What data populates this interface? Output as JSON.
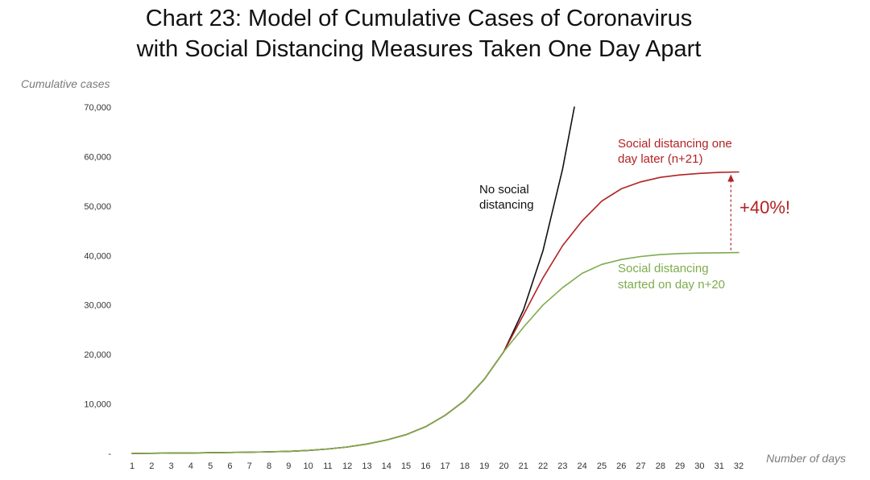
{
  "chart_data": {
    "type": "line",
    "title_line1": "Chart 23: Model of Cumulative Cases of Coronavirus",
    "title_line2": "with Social Distancing Measures Taken One Day Apart",
    "ylabel": "Cumulative cases",
    "xlabel": "Number of days",
    "ylim": [
      0,
      70000
    ],
    "y_ticks": [
      0,
      10000,
      20000,
      30000,
      40000,
      50000,
      60000,
      70000
    ],
    "y_tick_labels": [
      "-",
      "10,000",
      "20,000",
      "30,000",
      "40,000",
      "50,000",
      "60,000",
      "70,000"
    ],
    "x": [
      1,
      2,
      3,
      4,
      5,
      6,
      7,
      8,
      9,
      10,
      11,
      12,
      13,
      14,
      15,
      16,
      17,
      18,
      19,
      20,
      21,
      22,
      23,
      24,
      25,
      26,
      27,
      28,
      29,
      30,
      31,
      32
    ],
    "x_tick_labels": [
      "1",
      "2",
      "3",
      "4",
      "5",
      "6",
      "7",
      "8",
      "9",
      "10",
      "11",
      "12",
      "13",
      "14",
      "15",
      "16",
      "17",
      "18",
      "19",
      "20",
      "21",
      "22",
      "23",
      "24",
      "25",
      "26",
      "27",
      "28",
      "29",
      "30",
      "31",
      "32"
    ],
    "grid": false,
    "series": [
      {
        "name": "No social distancing",
        "color": "#111111",
        "x": [
          1,
          2,
          3,
          4,
          5,
          6,
          7,
          8,
          9,
          10,
          11,
          12,
          13,
          14,
          15,
          16,
          17,
          18,
          19,
          20,
          21,
          22,
          23,
          23.6
        ],
        "values": [
          0,
          30,
          60,
          100,
          150,
          200,
          250,
          320,
          420,
          600,
          900,
          1300,
          1900,
          2700,
          3800,
          5400,
          7700,
          10700,
          15000,
          20600,
          29000,
          41000,
          57500,
          70000
        ]
      },
      {
        "name": "Social distancing one day later (n+21)",
        "color": "#b22222",
        "x": [
          1,
          2,
          3,
          4,
          5,
          6,
          7,
          8,
          9,
          10,
          11,
          12,
          13,
          14,
          15,
          16,
          17,
          18,
          19,
          20,
          21,
          22,
          23,
          24,
          25,
          26,
          27,
          28,
          29,
          30,
          31,
          32
        ],
        "values": [
          0,
          30,
          60,
          100,
          150,
          200,
          250,
          320,
          420,
          600,
          900,
          1300,
          1900,
          2700,
          3800,
          5400,
          7700,
          10700,
          15000,
          20600,
          28000,
          35500,
          42000,
          47000,
          51000,
          53500,
          54900,
          55800,
          56300,
          56600,
          56800,
          56900
        ]
      },
      {
        "name": "Social distancing started on day n+20",
        "color": "#7cac4d",
        "x": [
          1,
          2,
          3,
          4,
          5,
          6,
          7,
          8,
          9,
          10,
          11,
          12,
          13,
          14,
          15,
          16,
          17,
          18,
          19,
          20,
          21,
          22,
          23,
          24,
          25,
          26,
          27,
          28,
          29,
          30,
          31,
          32
        ],
        "values": [
          0,
          30,
          60,
          100,
          150,
          200,
          250,
          320,
          420,
          600,
          900,
          1300,
          1900,
          2700,
          3800,
          5400,
          7700,
          10700,
          15000,
          20600,
          25500,
          30000,
          33500,
          36400,
          38200,
          39200,
          39800,
          40200,
          40400,
          40500,
          40550,
          40600
        ]
      }
    ],
    "annotations": {
      "no_sd_line1": "No social",
      "no_sd_line2": "distancing",
      "late_line1": "Social distancing one",
      "late_line2": "day later (n+21)",
      "early_line1": "Social distancing",
      "early_line2": "started on day n+20",
      "increase": "+40%!",
      "arrow_from_value": 40600,
      "arrow_to_value": 56900,
      "arrow_x": 31.6
    }
  }
}
